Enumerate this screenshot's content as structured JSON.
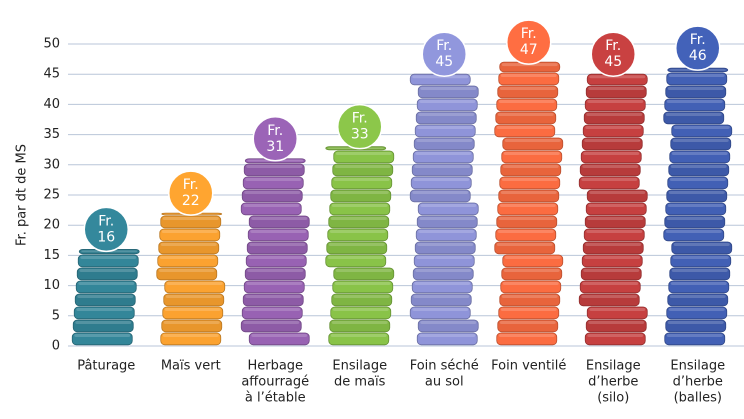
{
  "chart_data": {
    "type": "bar",
    "y_axis_label": "Fr. par dt de MS",
    "categories": [
      [
        "Pâturage"
      ],
      [
        "Maïs vert"
      ],
      [
        "Herbage",
        "affourragé",
        "à l’étable"
      ],
      [
        "Ensilage",
        "de maïs"
      ],
      [
        "Foin séché",
        "au sol"
      ],
      [
        "Foin ventilé"
      ],
      [
        "Ensilage",
        "d’herbe",
        "(silo)"
      ],
      [
        "Ensilage",
        "d’herbe",
        "(balles)"
      ]
    ],
    "values": [
      16,
      22,
      31,
      33,
      45,
      47,
      45,
      46
    ],
    "value_labels": [
      [
        "Fr.",
        "16"
      ],
      [
        "Fr.",
        "22"
      ],
      [
        "Fr.",
        "31"
      ],
      [
        "Fr.",
        "33"
      ],
      [
        "Fr.",
        "45"
      ],
      [
        "Fr.",
        "47"
      ],
      [
        "Fr.",
        "45"
      ],
      [
        "Fr.",
        "46"
      ]
    ],
    "colors": [
      "#2f7c8e",
      "#e8962c",
      "#8d5ba6",
      "#7fb543",
      "#8489c9",
      "#e8643c",
      "#b73b3b",
      "#3d59a8"
    ],
    "ylim": [
      0,
      50
    ],
    "yticks": [
      0,
      5,
      10,
      15,
      20,
      25,
      30,
      35,
      40,
      45,
      50
    ],
    "grid": true
  }
}
